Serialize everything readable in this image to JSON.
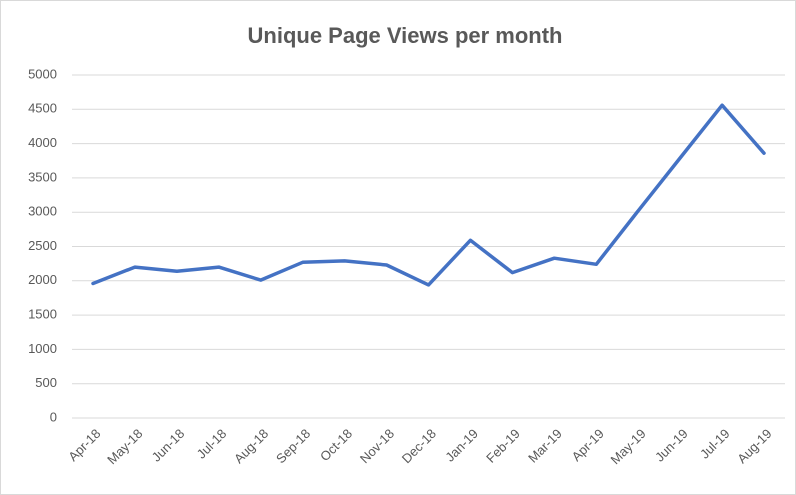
{
  "chart_data": {
    "type": "line",
    "title": "Unique Page Views per month",
    "categories": [
      "Apr-18",
      "May-18",
      "Jun-18",
      "Jul-18",
      "Aug-18",
      "Sep-18",
      "Oct-18",
      "Nov-18",
      "Dec-18",
      "Jan-19",
      "Feb-19",
      "Mar-19",
      "Apr-19",
      "May-19",
      "Jun-19",
      "Jul-19",
      "Aug-19"
    ],
    "values": [
      1960,
      2200,
      2140,
      2200,
      2010,
      2270,
      2290,
      2230,
      1940,
      2590,
      2120,
      2330,
      2240,
      3020,
      3790,
      4560,
      3860
    ],
    "color": "#4472c4",
    "ylim": [
      0,
      5000
    ],
    "yticks": [
      0,
      500,
      1000,
      1500,
      2000,
      2500,
      3000,
      3500,
      4000,
      4500,
      5000
    ],
    "grid": true
  }
}
